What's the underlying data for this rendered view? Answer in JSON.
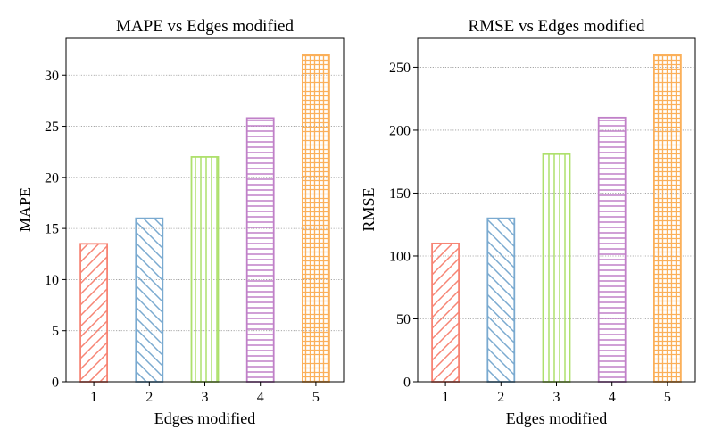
{
  "chart_data": [
    {
      "type": "bar",
      "title": "MAPE vs Edges modified",
      "xlabel": "Edges modified",
      "ylabel": "MAPE",
      "categories": [
        "1",
        "2",
        "3",
        "4",
        "5"
      ],
      "values": [
        13.5,
        16,
        22,
        25.8,
        32
      ],
      "ylim": [
        0,
        33.6
      ],
      "yticks": [
        0,
        5,
        10,
        15,
        20,
        25,
        30
      ],
      "grid": true,
      "colors": [
        "#f78474",
        "#7aaad0",
        "#aee06c",
        "#c080c8",
        "#fbb05a"
      ],
      "hatches": [
        "diag-right",
        "diag-left",
        "vertical",
        "horizontal",
        "grid"
      ]
    },
    {
      "type": "bar",
      "title": "RMSE vs Edges modified",
      "xlabel": "Edges modified",
      "ylabel": "RMSE",
      "categories": [
        "1",
        "2",
        "3",
        "4",
        "5"
      ],
      "values": [
        110,
        130,
        181,
        210,
        260
      ],
      "ylim": [
        0,
        273
      ],
      "yticks": [
        0,
        50,
        100,
        150,
        200,
        250
      ],
      "grid": true,
      "colors": [
        "#f78474",
        "#7aaad0",
        "#aee06c",
        "#c080c8",
        "#fbb05a"
      ],
      "hatches": [
        "diag-right",
        "diag-left",
        "vertical",
        "horizontal",
        "grid"
      ]
    }
  ]
}
